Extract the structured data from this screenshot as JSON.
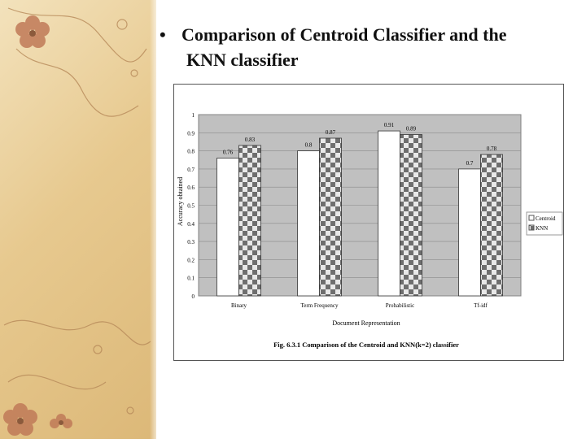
{
  "slide": {
    "bullet": "•",
    "title_line1": "Comparison of Centroid Classifier and the",
    "title_line2": "KNN classifier"
  },
  "chart_data": {
    "type": "bar",
    "categories": [
      "Binary",
      "Term Frequency",
      "Probabilistic",
      "Tf-idf"
    ],
    "series": [
      {
        "name": "Centroid",
        "values": [
          0.76,
          0.8,
          0.91,
          0.7
        ],
        "labels": [
          "0.76",
          "0.8",
          "0.91",
          "0.7"
        ]
      },
      {
        "name": "KNN",
        "values": [
          0.83,
          0.87,
          0.89,
          0.78
        ],
        "labels": [
          "0.83",
          "0.87",
          "0.89",
          "0.78"
        ]
      }
    ],
    "yticks": [
      "0",
      "0.1",
      "0.2",
      "0.3",
      "0.4",
      "0.5",
      "0.6",
      "0.7",
      "0.8",
      "0.9",
      "1"
    ],
    "ylim": [
      0,
      1
    ],
    "xlabel": "Document Representation",
    "ylabel": "Accuracy obtained",
    "caption": "Fig. 6.3.1 Comparison of the Centroid and KNN(k=2) classifier",
    "grid": true,
    "legend_position": "right",
    "colors": {
      "plot_bg": "#c0c0c0",
      "centroid": "#ffffff",
      "knn_dark": "#6e6e6e",
      "knn_light": "#e8e8e8"
    }
  }
}
